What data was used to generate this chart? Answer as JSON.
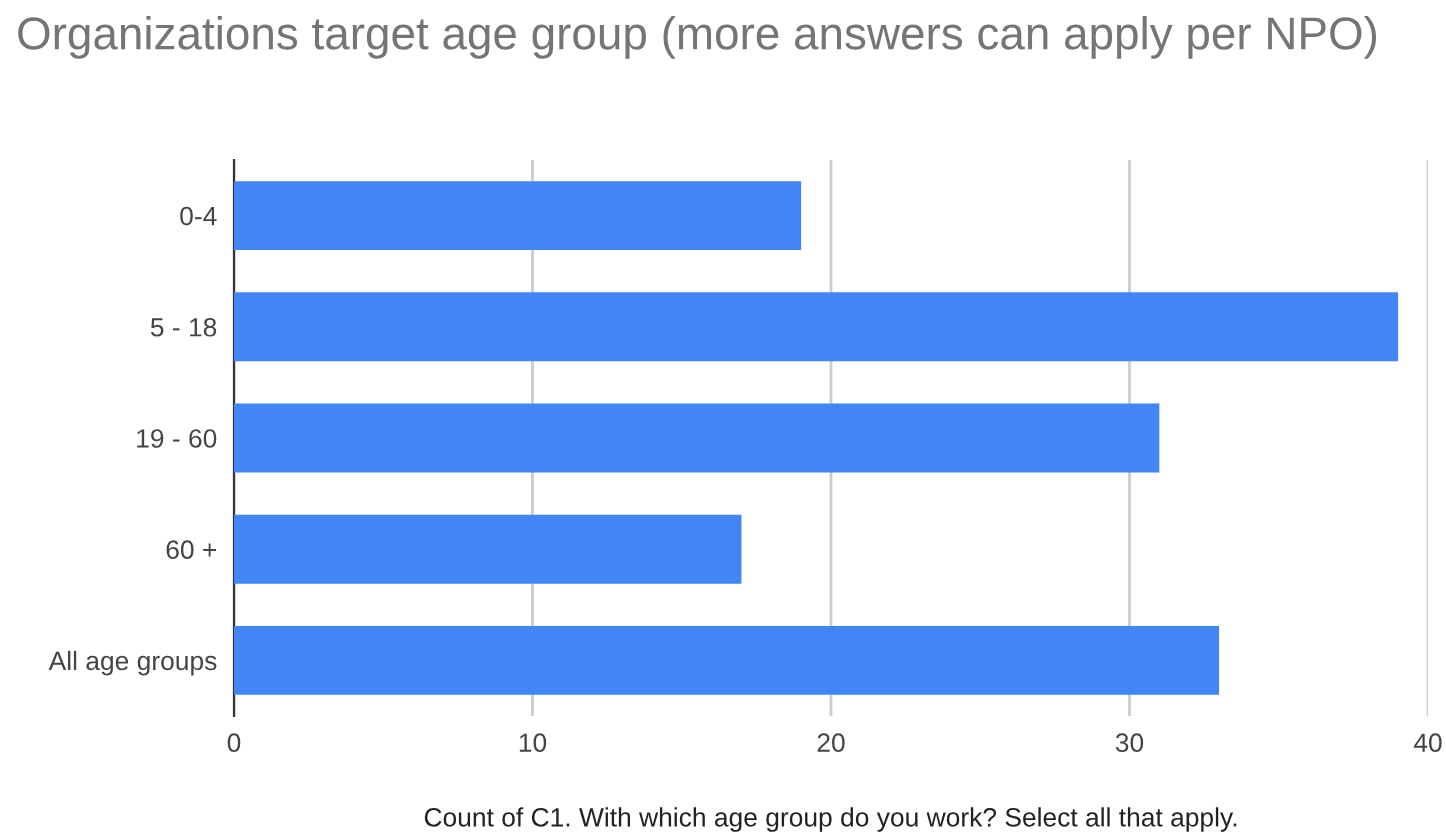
{
  "chart_data": {
    "type": "bar",
    "orientation": "horizontal",
    "title": "Organizations target age group (more answers can apply per NPO)",
    "xlabel": "Count of C1. With which age group do you work? Select all that apply.",
    "categories": [
      "0-4",
      "5 - 18",
      "19 - 60",
      "60 +",
      "All age groups"
    ],
    "values": [
      19,
      39,
      31,
      17,
      33
    ],
    "color": "#4285f4",
    "xlim": [
      0,
      40
    ],
    "xticks": [
      0,
      10,
      20,
      30,
      40
    ],
    "grid": "x"
  }
}
